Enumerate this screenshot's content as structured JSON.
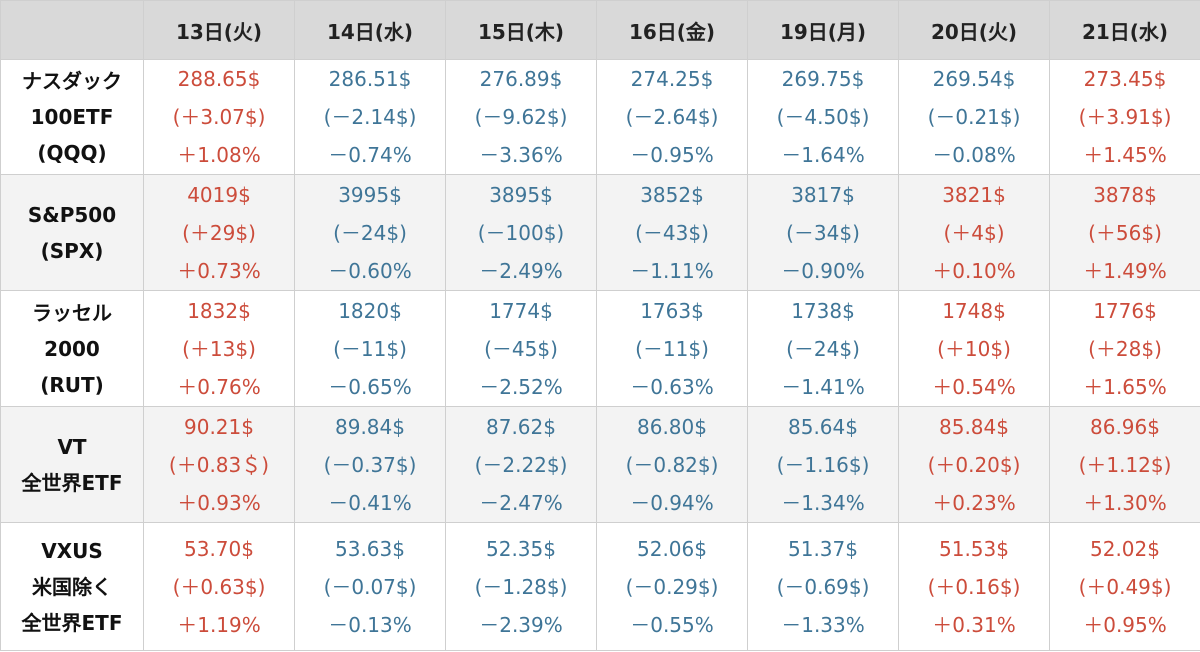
{
  "colors": {
    "up": "#cc4c3b",
    "down": "#3f7597",
    "header_bg": "#d9d9d9",
    "alt_row_bg": "#f3f3f3"
  },
  "headers": [
    "13日(火)",
    "14日(水)",
    "15日(木)",
    "16日(金)",
    "19日(月)",
    "20日(火)",
    "21日(水)"
  ],
  "rows": [
    {
      "label": [
        "ナスダック",
        "100ETF",
        "(QQQ)"
      ],
      "cells": [
        {
          "dir": "up",
          "price": "288.65$",
          "change": "(＋3.07$)",
          "pct": "＋1.08%"
        },
        {
          "dir": "down",
          "price": "286.51$",
          "change": "(－2.14$)",
          "pct": "－0.74%"
        },
        {
          "dir": "down",
          "price": "276.89$",
          "change": "(－9.62$)",
          "pct": "－3.36%"
        },
        {
          "dir": "down",
          "price": "274.25$",
          "change": "(－2.64$)",
          "pct": "－0.95%"
        },
        {
          "dir": "down",
          "price": "269.75$",
          "change": "(－4.50$)",
          "pct": "－1.64%"
        },
        {
          "dir": "down",
          "price": "269.54$",
          "change": "(－0.21$)",
          "pct": "－0.08%"
        },
        {
          "dir": "up",
          "price": "273.45$",
          "change": "(＋3.91$)",
          "pct": "＋1.45%"
        }
      ]
    },
    {
      "label": [
        "S&P500",
        "(SPX)"
      ],
      "cells": [
        {
          "dir": "up",
          "price": "4019$",
          "change": "(＋29$)",
          "pct": "＋0.73%"
        },
        {
          "dir": "down",
          "price": "3995$",
          "change": "(－24$)",
          "pct": "－0.60%"
        },
        {
          "dir": "down",
          "price": "3895$",
          "change": "(－100$)",
          "pct": "－2.49%"
        },
        {
          "dir": "down",
          "price": "3852$",
          "change": "(－43$)",
          "pct": "－1.11%"
        },
        {
          "dir": "down",
          "price": "3817$",
          "change": "(－34$)",
          "pct": "－0.90%"
        },
        {
          "dir": "up",
          "price": "3821$",
          "change": "(＋4$)",
          "pct": "＋0.10%"
        },
        {
          "dir": "up",
          "price": "3878$",
          "change": "(＋56$)",
          "pct": "＋1.49%"
        }
      ]
    },
    {
      "label": [
        "ラッセル",
        "2000",
        "(RUT)"
      ],
      "cells": [
        {
          "dir": "up",
          "price": "1832$",
          "change": "(＋13$)",
          "pct": "＋0.76%"
        },
        {
          "dir": "down",
          "price": "1820$",
          "change": "(－11$)",
          "pct": "－0.65%"
        },
        {
          "dir": "down",
          "price": "1774$",
          "change": "(－45$)",
          "pct": "－2.52%"
        },
        {
          "dir": "down",
          "price": "1763$",
          "change": "(－11$)",
          "pct": "－0.63%"
        },
        {
          "dir": "down",
          "price": "1738$",
          "change": "(－24$)",
          "pct": "－1.41%"
        },
        {
          "dir": "up",
          "price": "1748$",
          "change": "(＋10$)",
          "pct": "＋0.54%"
        },
        {
          "dir": "up",
          "price": "1776$",
          "change": "(＋28$)",
          "pct": "＋1.65%"
        }
      ]
    },
    {
      "label": [
        "VT",
        "全世界ETF"
      ],
      "cells": [
        {
          "dir": "up",
          "price": "90.21$",
          "change": "(＋0.83＄)",
          "pct": "＋0.93%"
        },
        {
          "dir": "down",
          "price": "89.84$",
          "change": "(－0.37$)",
          "pct": "－0.41%"
        },
        {
          "dir": "down",
          "price": "87.62$",
          "change": "(－2.22$)",
          "pct": "－2.47%"
        },
        {
          "dir": "down",
          "price": "86.80$",
          "change": "(－0.82$)",
          "pct": "－0.94%"
        },
        {
          "dir": "down",
          "price": "85.64$",
          "change": "(－1.16$)",
          "pct": "－1.34%"
        },
        {
          "dir": "up",
          "price": "85.84$",
          "change": "(＋0.20$)",
          "pct": "＋0.23%"
        },
        {
          "dir": "up",
          "price": "86.96$",
          "change": "(＋1.12$)",
          "pct": "＋1.30%"
        }
      ]
    },
    {
      "label": [
        "VXUS",
        "米国除く",
        "全世界ETF"
      ],
      "cells": [
        {
          "dir": "up",
          "price": "53.70$",
          "change": "(＋0.63$)",
          "pct": "＋1.19%"
        },
        {
          "dir": "down",
          "price": "53.63$",
          "change": "(－0.07$)",
          "pct": "－0.13%"
        },
        {
          "dir": "down",
          "price": "52.35$",
          "change": "(－1.28$)",
          "pct": "－2.39%"
        },
        {
          "dir": "down",
          "price": "52.06$",
          "change": "(－0.29$)",
          "pct": "－0.55%"
        },
        {
          "dir": "down",
          "price": "51.37$",
          "change": "(－0.69$)",
          "pct": "－1.33%"
        },
        {
          "dir": "up",
          "price": "51.53$",
          "change": "(＋0.16$)",
          "pct": "＋0.31%"
        },
        {
          "dir": "up",
          "price": "52.02$",
          "change": "(＋0.49$)",
          "pct": "＋0.95%"
        }
      ]
    }
  ]
}
